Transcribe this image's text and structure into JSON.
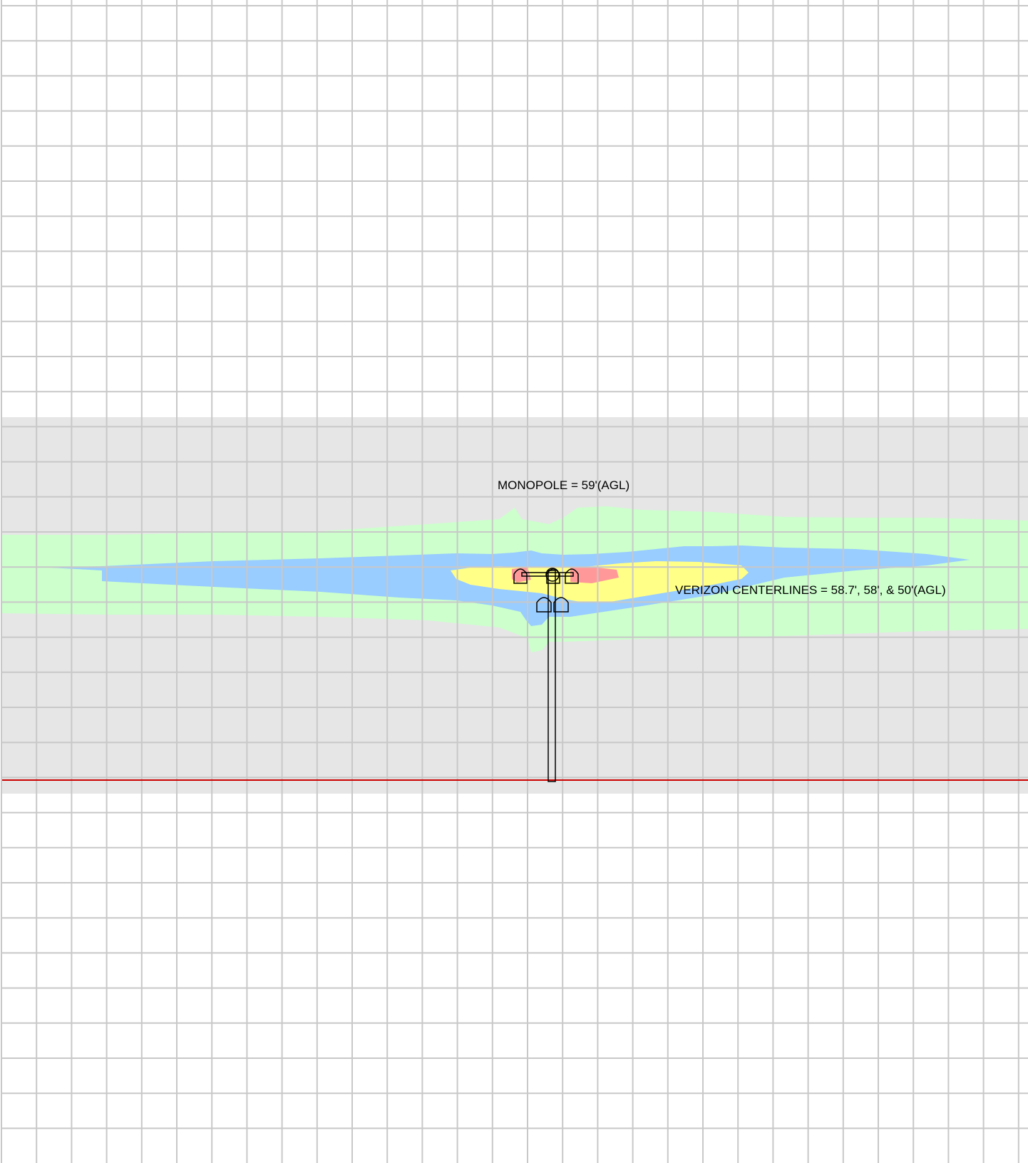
{
  "labels": {
    "monopole": "MONOPOLE = 59'(AGL)",
    "centerlines": "VERIZON CENTERLINES = 58.7', 58', & 50'(AGL)"
  },
  "colors": {
    "grid_line": "#c8c8c8",
    "elevation_band": "#e6e6e6",
    "ground_line": "#cc0000",
    "zone_outer": "#ccffcc",
    "zone_blue": "#99ccff",
    "zone_yellow": "#ffff88",
    "zone_red": "#ff9999",
    "outline": "#000000"
  }
}
